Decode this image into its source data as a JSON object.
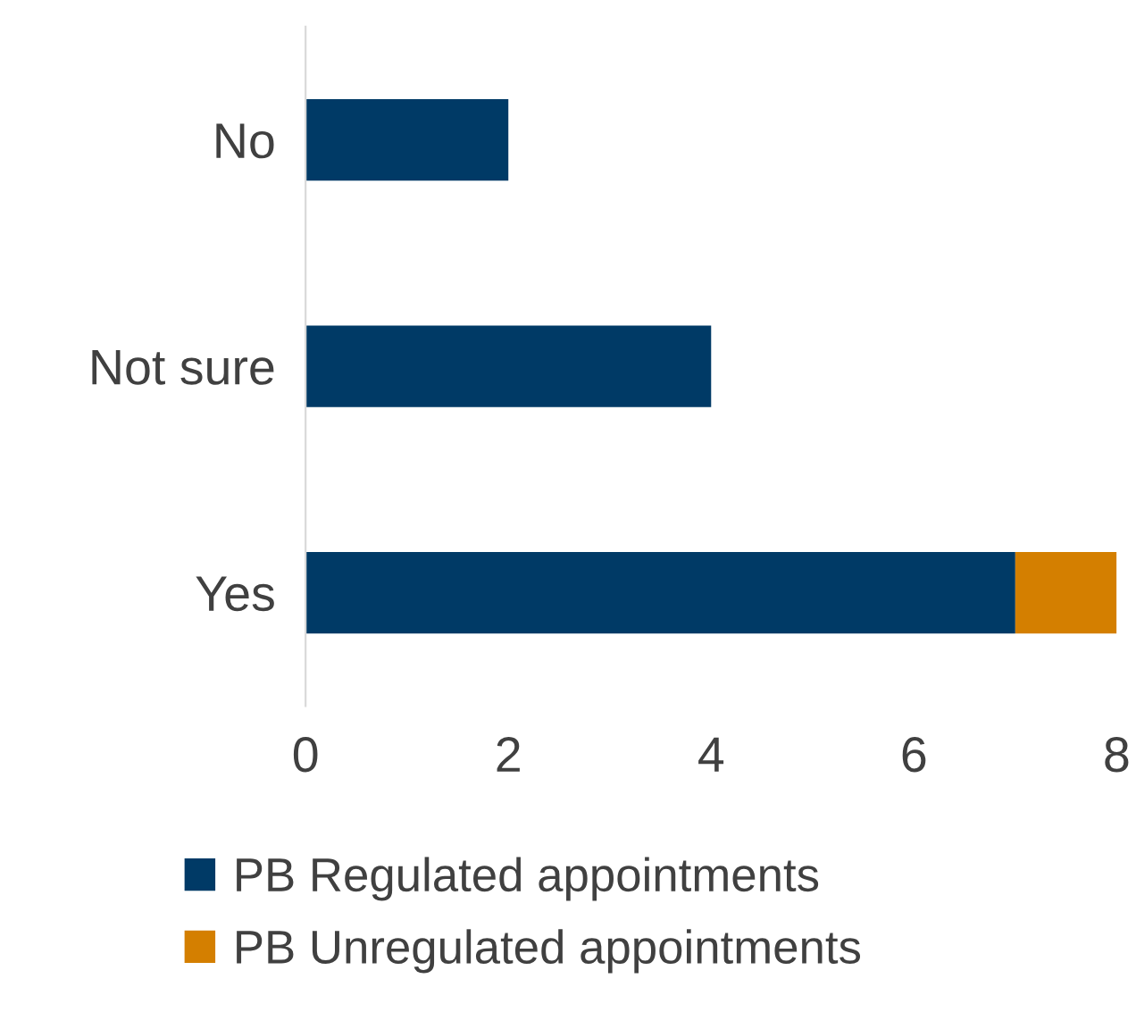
{
  "chart_data": {
    "type": "bar",
    "orientation": "horizontal",
    "stacked": true,
    "categories": [
      "No",
      "Not sure",
      "Yes"
    ],
    "series": [
      {
        "name": "PB Regulated appointments",
        "color": "#003a66",
        "values": [
          2,
          4,
          7
        ]
      },
      {
        "name": "PB Unregulated appointments",
        "color": "#d47f00",
        "values": [
          0,
          0,
          1
        ]
      }
    ],
    "xlim": [
      0,
      8
    ],
    "xticks": [
      0,
      2,
      4,
      6,
      8
    ],
    "grid": false,
    "legend": "bottom"
  }
}
